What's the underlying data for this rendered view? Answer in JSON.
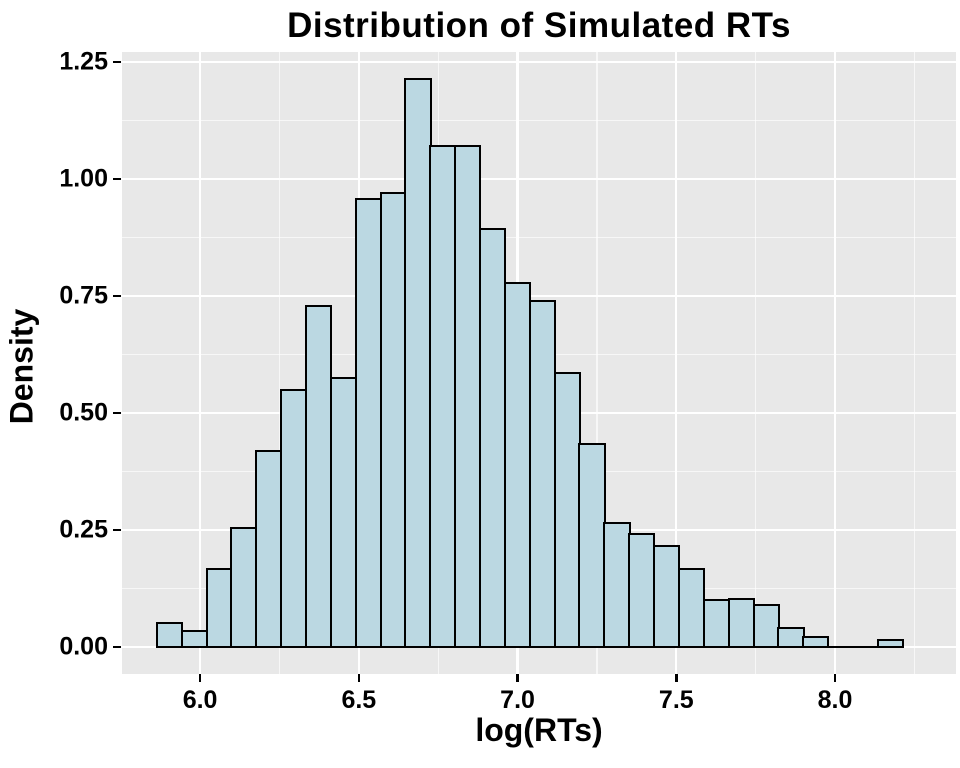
{
  "chart_data": {
    "type": "bar",
    "subtype": "histogram",
    "title": "Distribution of Simulated RTs",
    "xlabel": "log(RTs)",
    "ylabel": "Density",
    "xlim": [
      5.754,
      8.381
    ],
    "ylim": [
      -0.058,
      1.271
    ],
    "x_ticks": [
      6.0,
      6.5,
      7.0,
      7.5,
      8.0
    ],
    "x_tick_labels": [
      "6.0",
      "6.5",
      "7.0",
      "7.5",
      "8.0"
    ],
    "y_ticks": [
      0.0,
      0.25,
      0.5,
      0.75,
      1.0,
      1.25
    ],
    "y_tick_labels": [
      "0.00",
      "0.25",
      "0.50",
      "0.75",
      "1.00",
      "1.25"
    ],
    "x_minor_gridlines": [
      6.25,
      6.75,
      7.25,
      7.75,
      8.25
    ],
    "y_minor_gridlines": [
      0.125,
      0.375,
      0.625,
      0.875,
      1.125
    ],
    "grid": "on",
    "legend": "none",
    "bin_start": 5.8646,
    "bin_width": 0.0783,
    "bin_edges_note": "30 equal-width bins from 5.865 to 8.214",
    "values": [
      0.051,
      0.033,
      0.165,
      0.254,
      0.419,
      0.549,
      0.727,
      0.575,
      0.957,
      0.97,
      1.213,
      1.07,
      1.07,
      0.893,
      0.778,
      0.739,
      0.585,
      0.434,
      0.265,
      0.241,
      0.215,
      0.165,
      0.1,
      0.101,
      0.088,
      0.039,
      0.021,
      0.0,
      0.0,
      0.014
    ],
    "colors": {
      "bar_fill": "#bbd8e2",
      "bar_border": "#000000",
      "panel_background": "#e8e8e8",
      "grid_major": "#ffffff",
      "grid_minor": "#ffffff",
      "text": "#000000",
      "figure_background": "#ffffff"
    }
  }
}
